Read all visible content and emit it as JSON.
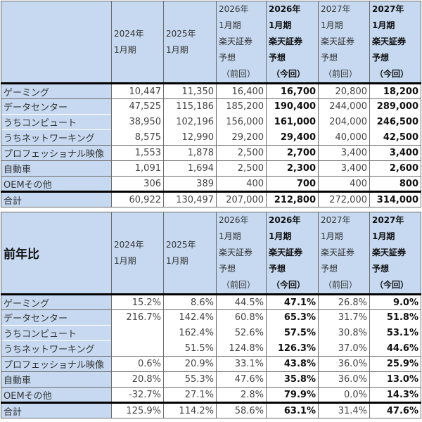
{
  "headers": {
    "col1": [
      "2024年",
      "1月期"
    ],
    "col2": [
      "2025年",
      "1月期"
    ],
    "col3": [
      "2026年",
      "1月期",
      "楽天証券",
      "予想",
      "（前回）"
    ],
    "col4": [
      "2026年",
      "1月期",
      "楽天証券",
      "予想",
      "（今回）"
    ],
    "col5": [
      "2027年",
      "1月期",
      "楽天証券",
      "予想",
      "（前回）"
    ],
    "col6": [
      "2027年",
      "1月期",
      "楽天証券",
      "予想",
      "（今回）"
    ]
  },
  "revenue_table": {
    "corner_label": "",
    "rows": [
      {
        "label": "ゲーミング",
        "values": [
          "10,447",
          "11,350",
          "16,400",
          "16,700",
          "20,800",
          "18,200"
        ]
      },
      {
        "label": "データセンター",
        "values": [
          "47,525",
          "115,186",
          "185,200",
          "190,400",
          "244,000",
          "289,000"
        ]
      },
      {
        "label": "うちコンピュート",
        "values": [
          "38,950",
          "102,196",
          "156,000",
          "161,000",
          "204,000",
          "246,500"
        ]
      },
      {
        "label": "うちネットワーキング",
        "values": [
          "8,575",
          "12,990",
          "29,200",
          "29,400",
          "40,000",
          "42,500"
        ]
      },
      {
        "label": "プロフェッショナル映像",
        "values": [
          "1,553",
          "1,878",
          "2,500",
          "2,700",
          "3,400",
          "3,400"
        ]
      },
      {
        "label": "自動車",
        "values": [
          "1,091",
          "1,694",
          "2,500",
          "2,300",
          "3,400",
          "2,600"
        ]
      },
      {
        "label": "OEMその他",
        "values": [
          "306",
          "389",
          "400",
          "700",
          "400",
          "800"
        ]
      },
      {
        "label": "合計",
        "values": [
          "60,922",
          "130,497",
          "207,000",
          "212,800",
          "272,000",
          "314,000"
        ]
      }
    ]
  },
  "yoy_table": {
    "corner_label": "前年比",
    "rows": [
      {
        "label": "ゲーミング",
        "values": [
          "15.2%",
          "8.6%",
          "44.5%",
          "47.1%",
          "26.8%",
          "9.0%"
        ]
      },
      {
        "label": "データセンター",
        "values": [
          "216.7%",
          "142.4%",
          "60.8%",
          "65.3%",
          "31.7%",
          "51.8%"
        ]
      },
      {
        "label": "うちコンピュート",
        "values": [
          "",
          "162.4%",
          "52.6%",
          "57.5%",
          "30.8%",
          "53.1%"
        ]
      },
      {
        "label": "うちネットワーキング",
        "values": [
          "",
          "51.5%",
          "124.8%",
          "126.3%",
          "37.0%",
          "44.6%"
        ]
      },
      {
        "label": "プロフェッショナル映像",
        "values": [
          "0.6%",
          "20.9%",
          "33.1%",
          "43.8%",
          "36.0%",
          "25.9%"
        ]
      },
      {
        "label": "自動車",
        "values": [
          "20.8%",
          "55.3%",
          "47.6%",
          "35.8%",
          "36.0%",
          "13.0%"
        ]
      },
      {
        "label": "OEMその他",
        "values": [
          "-32.7%",
          "27.1%",
          "2.8%",
          "79.9%",
          "0.0%",
          "14.3%"
        ]
      },
      {
        "label": "合計",
        "values": [
          "125.9%",
          "114.2%",
          "58.6%",
          "63.1%",
          "31.4%",
          "47.6%"
        ]
      }
    ]
  },
  "colors": {
    "header_bg": "#c6d9f0",
    "label_bg": "#c6d9f0",
    "thick_border": "#000000"
  }
}
